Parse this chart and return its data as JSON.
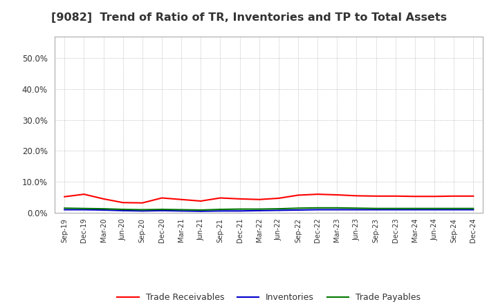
{
  "title": "[9082]  Trend of Ratio of TR, Inventories and TP to Total Assets",
  "title_fontsize": 11.5,
  "background_color": "#ffffff",
  "plot_bg_color": "#ffffff",
  "x_labels": [
    "Sep-19",
    "Dec-19",
    "Mar-20",
    "Jun-20",
    "Sep-20",
    "Dec-20",
    "Mar-21",
    "Jun-21",
    "Sep-21",
    "Dec-21",
    "Mar-22",
    "Jun-22",
    "Sep-22",
    "Dec-22",
    "Mar-23",
    "Jun-23",
    "Sep-23",
    "Dec-23",
    "Mar-24",
    "Jun-24",
    "Sep-24",
    "Dec-24"
  ],
  "trade_receivables": [
    0.052,
    0.06,
    0.045,
    0.033,
    0.032,
    0.048,
    0.043,
    0.038,
    0.048,
    0.045,
    0.043,
    0.047,
    0.057,
    0.06,
    0.058,
    0.055,
    0.054,
    0.054,
    0.053,
    0.053,
    0.054,
    0.054
  ],
  "inventories": [
    0.01,
    0.01,
    0.009,
    0.007,
    0.006,
    0.007,
    0.006,
    0.005,
    0.006,
    0.006,
    0.007,
    0.008,
    0.009,
    0.01,
    0.01,
    0.01,
    0.01,
    0.01,
    0.01,
    0.01,
    0.01,
    0.01
  ],
  "trade_payables": [
    0.015,
    0.014,
    0.013,
    0.011,
    0.01,
    0.011,
    0.01,
    0.009,
    0.011,
    0.012,
    0.012,
    0.013,
    0.015,
    0.016,
    0.016,
    0.015,
    0.014,
    0.014,
    0.014,
    0.014,
    0.014,
    0.014
  ],
  "ylim": [
    0,
    0.57
  ],
  "yticks": [
    0.0,
    0.1,
    0.2,
    0.3,
    0.4,
    0.5
  ],
  "tr_color": "#ff0000",
  "inv_color": "#0000cc",
  "tp_color": "#007700",
  "legend_labels": [
    "Trade Receivables",
    "Inventories",
    "Trade Payables"
  ],
  "grid_color": "#888888",
  "spine_color": "#aaaaaa"
}
